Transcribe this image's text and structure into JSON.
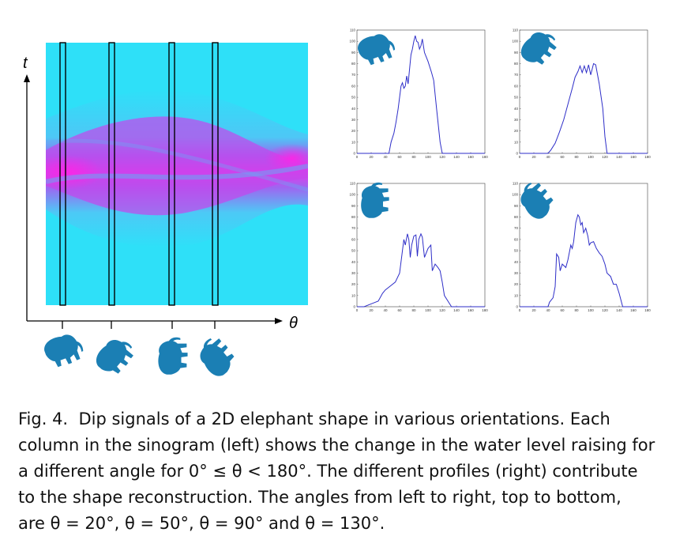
{
  "sinogram": {
    "t_label": "t",
    "theta_label": "θ",
    "colors": {
      "background": "#2ee0f8",
      "mid": "#8f6cf2",
      "high": "#ff28e6",
      "elephant": "#1b7fb4"
    }
  },
  "chart_data": [
    {
      "type": "line",
      "title": "",
      "xlabel": "",
      "ylabel": "",
      "xlim": [
        0,
        180
      ],
      "ylim": [
        0,
        110
      ],
      "x_ticks": [
        0,
        20,
        40,
        60,
        80,
        100,
        120,
        140,
        160,
        180
      ],
      "y_ticks": [
        0,
        10,
        20,
        30,
        40,
        50,
        60,
        70,
        80,
        90,
        100,
        110
      ],
      "series": [
        {
          "x": [
            0,
            45,
            48,
            52,
            55,
            58,
            62,
            64,
            66,
            68,
            70,
            72,
            74,
            76,
            78,
            80,
            82,
            84,
            86,
            88,
            90,
            92,
            95,
            100,
            105,
            108,
            112,
            117,
            120,
            122,
            180
          ],
          "y": [
            0,
            0,
            10,
            18,
            28,
            40,
            60,
            63,
            58,
            60,
            69,
            62,
            75,
            88,
            93,
            100,
            105,
            100,
            99,
            93,
            96,
            102,
            90,
            82,
            72,
            65,
            40,
            10,
            0,
            0,
            0
          ]
        }
      ]
    },
    {
      "type": "line",
      "title": "",
      "xlabel": "",
      "ylabel": "",
      "xlim": [
        0,
        180
      ],
      "ylim": [
        0,
        110
      ],
      "x_ticks": [
        0,
        20,
        40,
        60,
        80,
        100,
        120,
        140,
        160,
        180
      ],
      "y_ticks": [
        0,
        10,
        20,
        30,
        40,
        50,
        60,
        70,
        80,
        90,
        100,
        110
      ],
      "series": [
        {
          "x": [
            0,
            40,
            44,
            50,
            56,
            62,
            68,
            74,
            78,
            82,
            85,
            88,
            91,
            94,
            97,
            100,
            104,
            107,
            112,
            117,
            120,
            123,
            126,
            180
          ],
          "y": [
            0,
            0,
            3,
            9,
            19,
            30,
            44,
            58,
            68,
            73,
            78,
            72,
            78,
            72,
            79,
            70,
            80,
            79,
            62,
            40,
            15,
            0,
            0,
            0
          ]
        }
      ]
    },
    {
      "type": "line",
      "title": "",
      "xlabel": "",
      "ylabel": "",
      "xlim": [
        0,
        180
      ],
      "ylim": [
        0,
        110
      ],
      "x_ticks": [
        0,
        20,
        40,
        60,
        80,
        100,
        120,
        140,
        160,
        180
      ],
      "y_ticks": [
        0,
        10,
        20,
        30,
        40,
        50,
        60,
        70,
        80,
        90,
        100,
        110
      ],
      "series": [
        {
          "x": [
            0,
            10,
            22,
            30,
            36,
            40,
            46,
            54,
            60,
            64,
            66,
            68,
            71,
            73,
            75,
            77,
            80,
            83,
            85,
            87,
            90,
            92,
            95,
            100,
            104,
            106,
            110,
            114,
            117,
            120,
            123,
            128,
            133,
            140,
            180
          ],
          "y": [
            0,
            0,
            3,
            5,
            12,
            15,
            18,
            22,
            30,
            50,
            60,
            55,
            65,
            60,
            44,
            55,
            63,
            64,
            45,
            60,
            65,
            62,
            44,
            52,
            55,
            32,
            38,
            35,
            32,
            22,
            10,
            5,
            0,
            0,
            0
          ]
        }
      ]
    },
    {
      "type": "line",
      "title": "",
      "xlabel": "",
      "ylabel": "",
      "xlim": [
        0,
        180
      ],
      "ylim": [
        0,
        110
      ],
      "x_ticks": [
        0,
        20,
        40,
        60,
        80,
        100,
        120,
        140,
        160,
        180
      ],
      "y_ticks": [
        0,
        10,
        20,
        30,
        40,
        50,
        60,
        70,
        80,
        90,
        100,
        110
      ],
      "series": [
        {
          "x": [
            0,
            40,
            42,
            47,
            50,
            52,
            55,
            57,
            60,
            65,
            68,
            72,
            74,
            76,
            79,
            82,
            84,
            86,
            88,
            90,
            93,
            96,
            98,
            100,
            104,
            108,
            112,
            116,
            120,
            123,
            128,
            132,
            136,
            140,
            145,
            150,
            155,
            180
          ],
          "y": [
            0,
            0,
            4,
            8,
            18,
            47,
            44,
            32,
            38,
            35,
            42,
            55,
            52,
            58,
            75,
            82,
            80,
            73,
            75,
            66,
            70,
            63,
            55,
            57,
            58,
            52,
            48,
            45,
            38,
            30,
            27,
            20,
            20,
            12,
            0,
            0,
            0,
            0
          ]
        }
      ]
    }
  ],
  "caption": {
    "label": "Fig. 4.",
    "lines": [
      "Dip signals of a 2D elephant shape in various orientations. Each",
      "column in the sinogram (left) shows the change in the water level raising for",
      "a different angle for 0° ≤ θ < 180°. The different profiles (right) contribute",
      "to the shape reconstruction. The angles from left to right, top to bottom,",
      "are θ = 20°, θ = 50°, θ = 90° and θ = 130°."
    ]
  }
}
